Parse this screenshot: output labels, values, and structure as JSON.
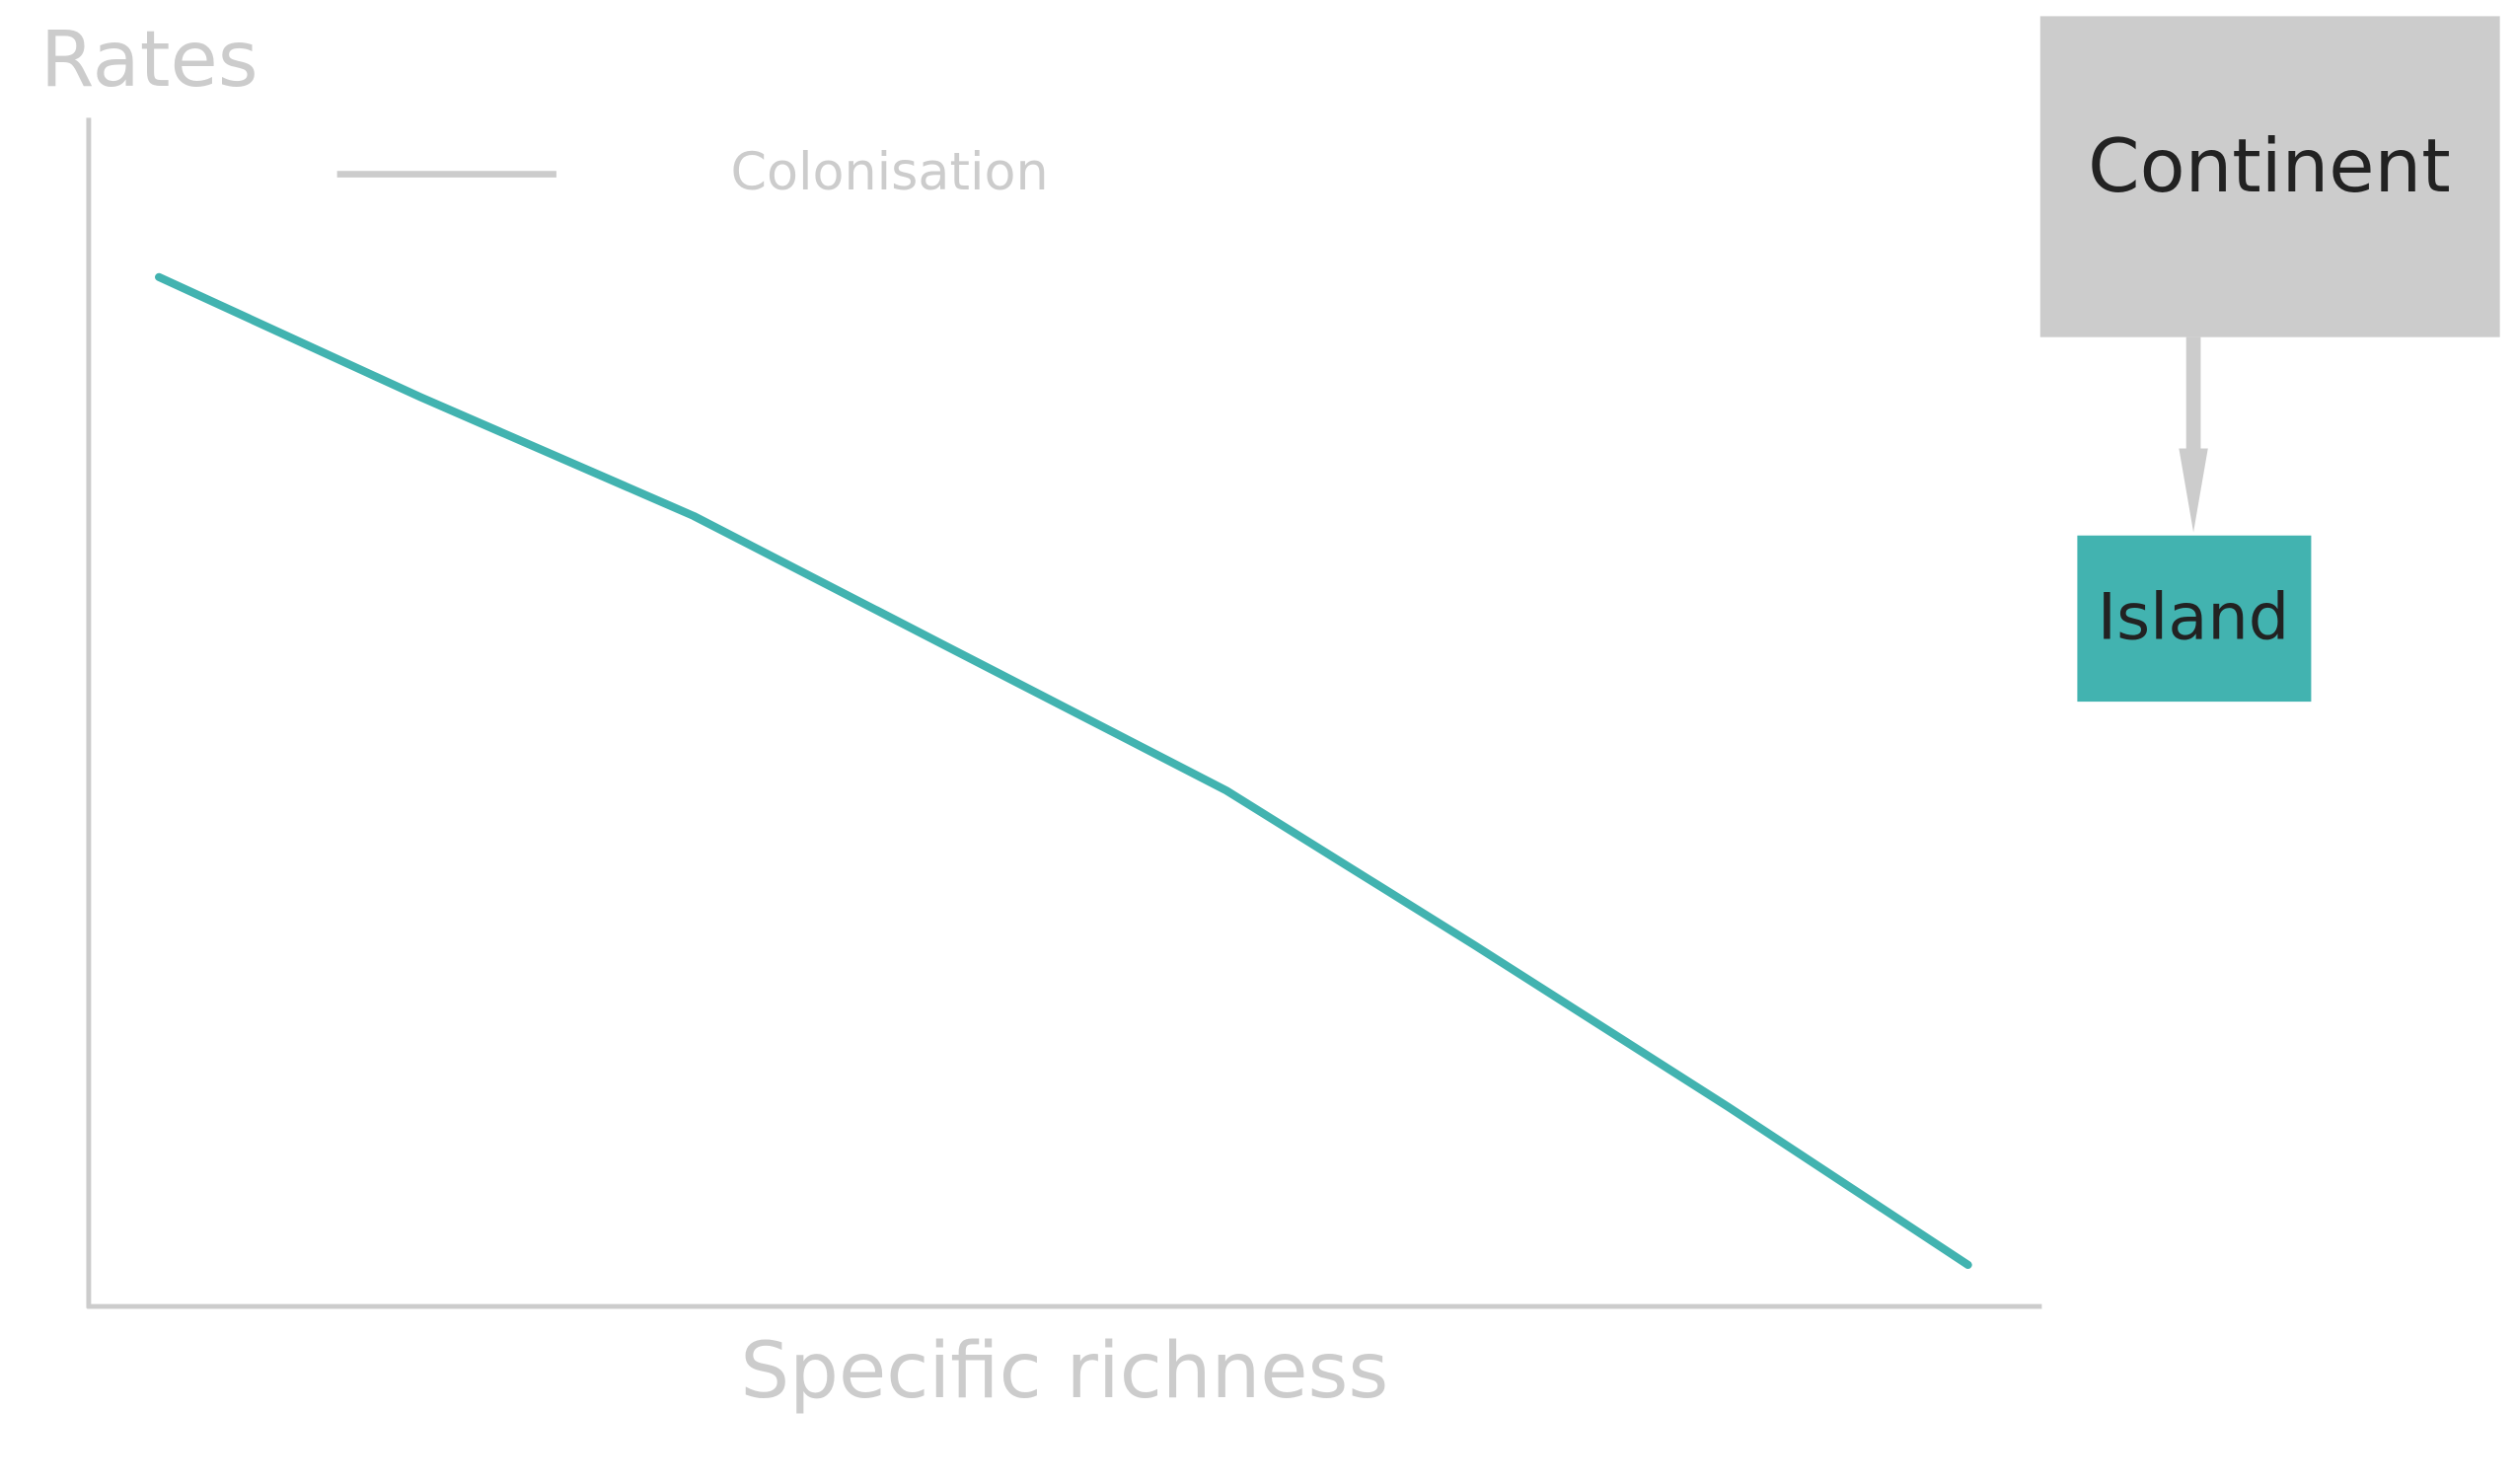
{
  "chart_data": {
    "type": "line",
    "ylabel": "Rates",
    "xlabel": "Specific richness",
    "x": [
      3.6,
      17,
      31,
      44,
      58.3,
      71,
      84,
      96.3
    ],
    "series": [
      {
        "name": "Colonisation",
        "color": "#42b3b0",
        "values": [
          86.6,
          76.5,
          66.5,
          55.5,
          43.4,
          30.4,
          16.8,
          3.5
        ]
      }
    ],
    "xlim": [
      0,
      100
    ],
    "ylim": [
      0,
      100
    ]
  },
  "diagram": {
    "nodes": [
      {
        "label": "Continent"
      },
      {
        "label": "Island"
      }
    ]
  }
}
